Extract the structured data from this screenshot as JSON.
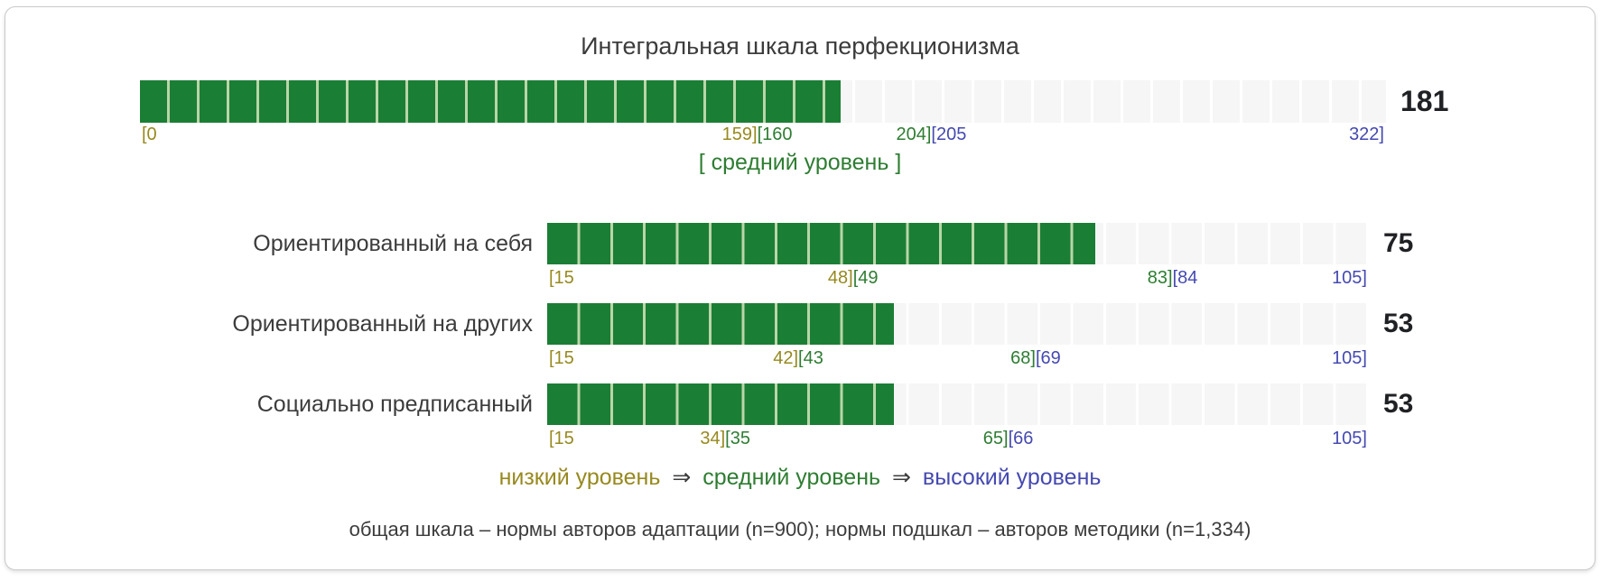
{
  "title": "Интегральная шкала перфекционизма",
  "total": {
    "value": 181,
    "min": 0,
    "max": 322,
    "tick_left": "[0",
    "b1": {
      "left": "159]",
      "right": "[160",
      "at": 159.5
    },
    "b2": {
      "left": "204]",
      "right": "[205",
      "at": 204.5
    },
    "tick_right": "322]",
    "level_label": "[ средний уровень ]"
  },
  "subscales": [
    {
      "label": "Ориентированный на себя",
      "value": 75,
      "min": 15,
      "max": 105,
      "tick_left": "[15",
      "b1": {
        "left": "48]",
        "right": "[49",
        "at": 48.5
      },
      "b2": {
        "left": "83]",
        "right": "[84",
        "at": 83.5
      },
      "tick_right": "105]"
    },
    {
      "label": "Ориентированный на других",
      "value": 53,
      "min": 15,
      "max": 105,
      "tick_left": "[15",
      "b1": {
        "left": "42]",
        "right": "[43",
        "at": 42.5
      },
      "b2": {
        "left": "68]",
        "right": "[69",
        "at": 68.5
      },
      "tick_right": "105]"
    },
    {
      "label": "Социально предписанный",
      "value": 53,
      "min": 15,
      "max": 105,
      "tick_left": "[15",
      "b1": {
        "left": "34]",
        "right": "[35",
        "at": 34.5
      },
      "b2": {
        "left": "65]",
        "right": "[66",
        "at": 65.5
      },
      "tick_right": "105]"
    }
  ],
  "legend": {
    "low": "низкий уровень",
    "arrow1": "⇒",
    "mid": "средний уровень",
    "arrow2": "⇒",
    "high": "высокий уровень"
  },
  "footnote": "общая шкала – нормы авторов адаптации (n=900); нормы подшкал – авторов методики (n=1,334)",
  "colors": {
    "low": "#97891f",
    "mid": "#2e7d32",
    "high": "#4549b0",
    "fill": "#1b7e35",
    "fillgap": "#b9d6a8",
    "track": "#f6f6f6",
    "trackgap": "#ffffff",
    "text": "#3c3c3c",
    "value": "#202124"
  },
  "chart_data": {
    "type": "bar",
    "orientation": "horizontal",
    "title": "Интегральная шкала перфекционизма",
    "scales": [
      {
        "name": "Интегральная шкала перфекционизма",
        "value": 181,
        "range": [
          0,
          322
        ],
        "zones": {
          "low": [
            0,
            159
          ],
          "medium": [
            160,
            204
          ],
          "high": [
            205,
            322
          ]
        },
        "level": "средний уровень"
      },
      {
        "name": "Ориентированный на себя",
        "value": 75,
        "range": [
          15,
          105
        ],
        "zones": {
          "low": [
            15,
            48
          ],
          "medium": [
            49,
            83
          ],
          "high": [
            84,
            105
          ]
        }
      },
      {
        "name": "Ориентированный на других",
        "value": 53,
        "range": [
          15,
          105
        ],
        "zones": {
          "low": [
            15,
            42
          ],
          "medium": [
            43,
            68
          ],
          "high": [
            69,
            105
          ]
        }
      },
      {
        "name": "Социально предписанный",
        "value": 53,
        "range": [
          15,
          105
        ],
        "zones": {
          "low": [
            15,
            34
          ],
          "medium": [
            35,
            65
          ],
          "high": [
            66,
            105
          ]
        }
      }
    ],
    "legend": [
      "низкий уровень",
      "средний уровень",
      "высокий уровень"
    ],
    "footnote": "общая шкала – нормы авторов адаптации (n=900); нормы подшкал – авторов методики (n=1,334)"
  }
}
